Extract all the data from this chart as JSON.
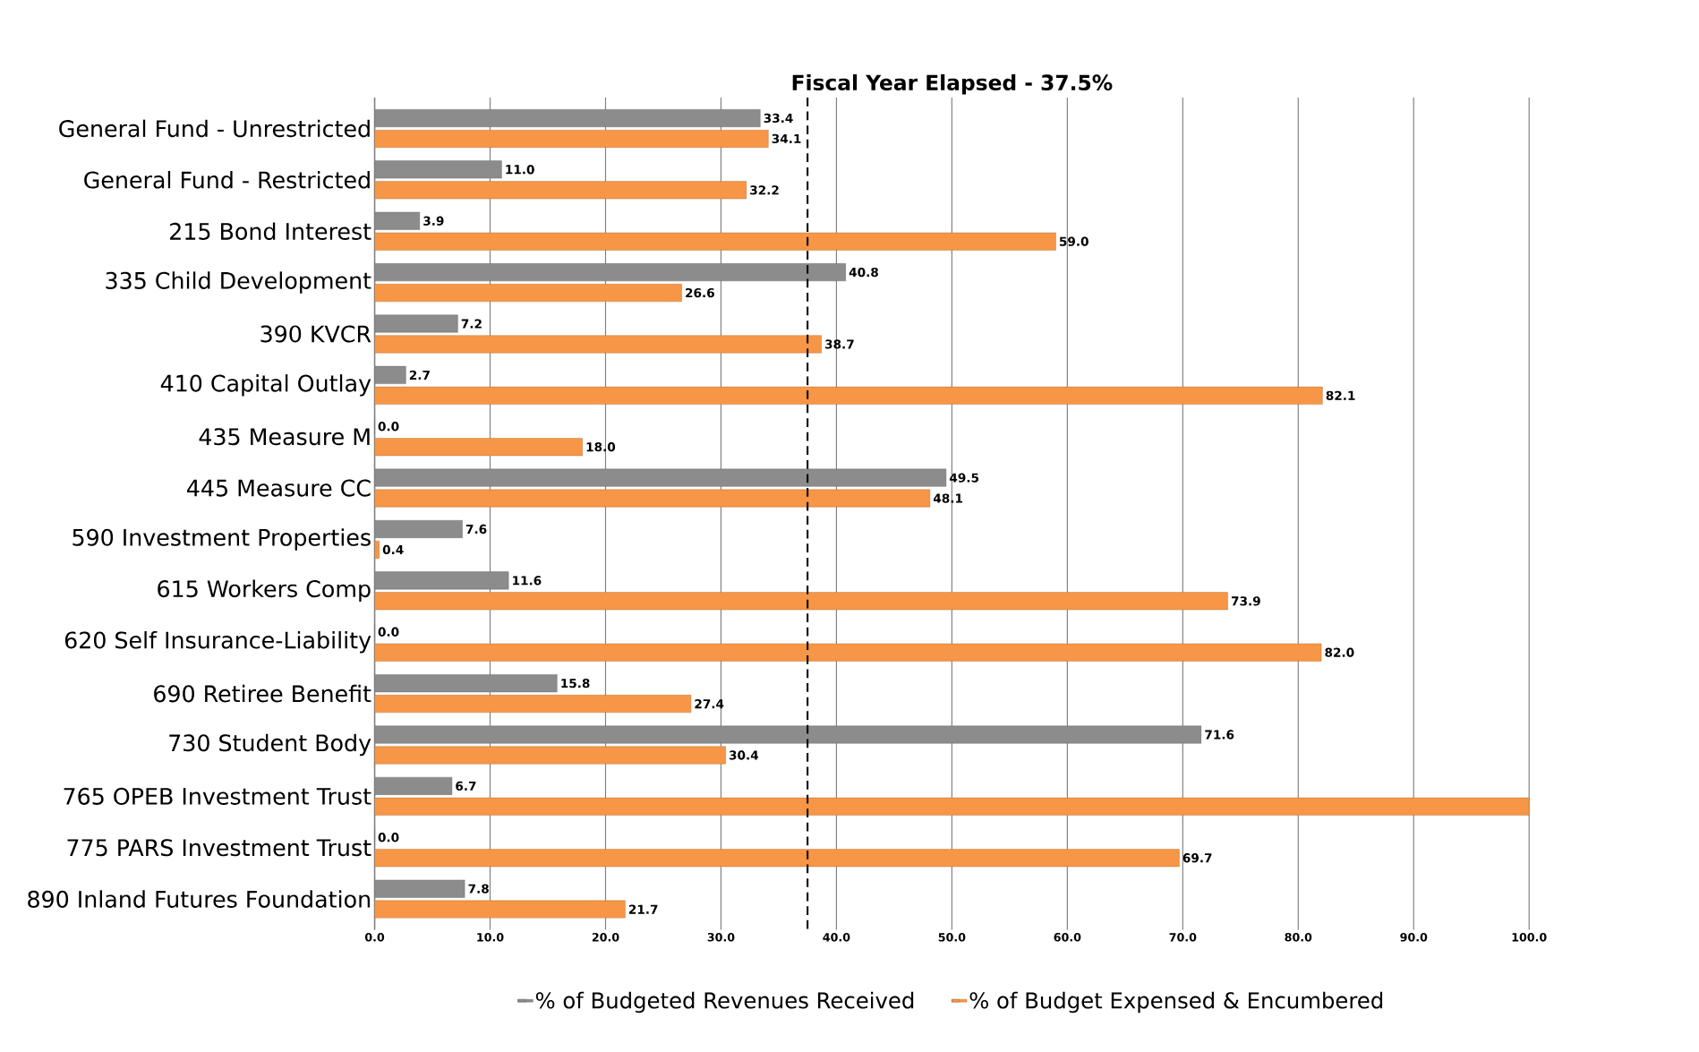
{
  "chart_data": {
    "type": "bar",
    "orientation": "horizontal",
    "title": "Fiscal Year Elapsed - 37.5%",
    "categories": [
      "General Fund - Unrestricted",
      "General Fund - Restricted",
      "215 Bond Interest",
      "335 Child Development",
      "390 KVCR",
      "410 Capital Outlay",
      "435 Measure M",
      "445 Measure CC",
      "590 Investment Properties",
      "615 Workers Comp",
      "620 Self Insurance-Liability",
      "690 Retiree Benefit",
      "730 Student Body",
      "765 OPEB Investment Trust",
      "775 PARS Investment Trust",
      "890 Inland Futures Foundation"
    ],
    "series": [
      {
        "name": "% of Budgeted Revenues Received",
        "color": "#8c8c8c",
        "values": [
          33.4,
          11.0,
          3.9,
          40.8,
          7.2,
          2.7,
          0.0,
          49.5,
          7.6,
          11.6,
          0.0,
          15.8,
          71.6,
          6.7,
          0.0,
          7.8
        ],
        "value_labels": [
          "33.4",
          "11.0",
          "3.9",
          "40.8",
          "7.2",
          "2.7",
          "0.0",
          "49.5",
          "7.6",
          "11.6",
          "0.0",
          "15.8",
          "71.6",
          "6.7",
          "0.0",
          "7.8"
        ]
      },
      {
        "name": "% of Budget Expensed & Encumbered",
        "color": "#f79646",
        "values": [
          34.1,
          32.2,
          59.0,
          26.6,
          38.7,
          82.1,
          18.0,
          48.1,
          0.4,
          73.9,
          82.0,
          27.4,
          30.4,
          100,
          69.7,
          21.7
        ],
        "value_labels": [
          "34.1",
          "32.2",
          "59.0",
          "26.6",
          "38.7",
          "82.1",
          "18.0",
          "48.1",
          "0.4",
          "73.9",
          "82.0",
          "27.4",
          "30.4",
          null,
          "69.7",
          "21.7"
        ]
      }
    ],
    "xlim": [
      0,
      100
    ],
    "xticks": [
      {
        "value": 0,
        "label": "0.0"
      },
      {
        "value": 10,
        "label": "10.0"
      },
      {
        "value": 20,
        "label": "20.0"
      },
      {
        "value": 30,
        "label": "30.0"
      },
      {
        "value": 40,
        "label": "40.0"
      },
      {
        "value": 50,
        "label": "50.0"
      },
      {
        "value": 60,
        "label": "60.0"
      },
      {
        "value": 70,
        "label": "70.0"
      },
      {
        "value": 80,
        "label": "80.0"
      },
      {
        "value": 90,
        "label": "90.0"
      },
      {
        "value": 100,
        "label": "100.0"
      }
    ],
    "ref_lines": [
      {
        "axis": "x",
        "value": 37.5,
        "line_style": "dashed",
        "color": "#000000"
      }
    ],
    "grid": "x",
    "legend": "bottom"
  }
}
